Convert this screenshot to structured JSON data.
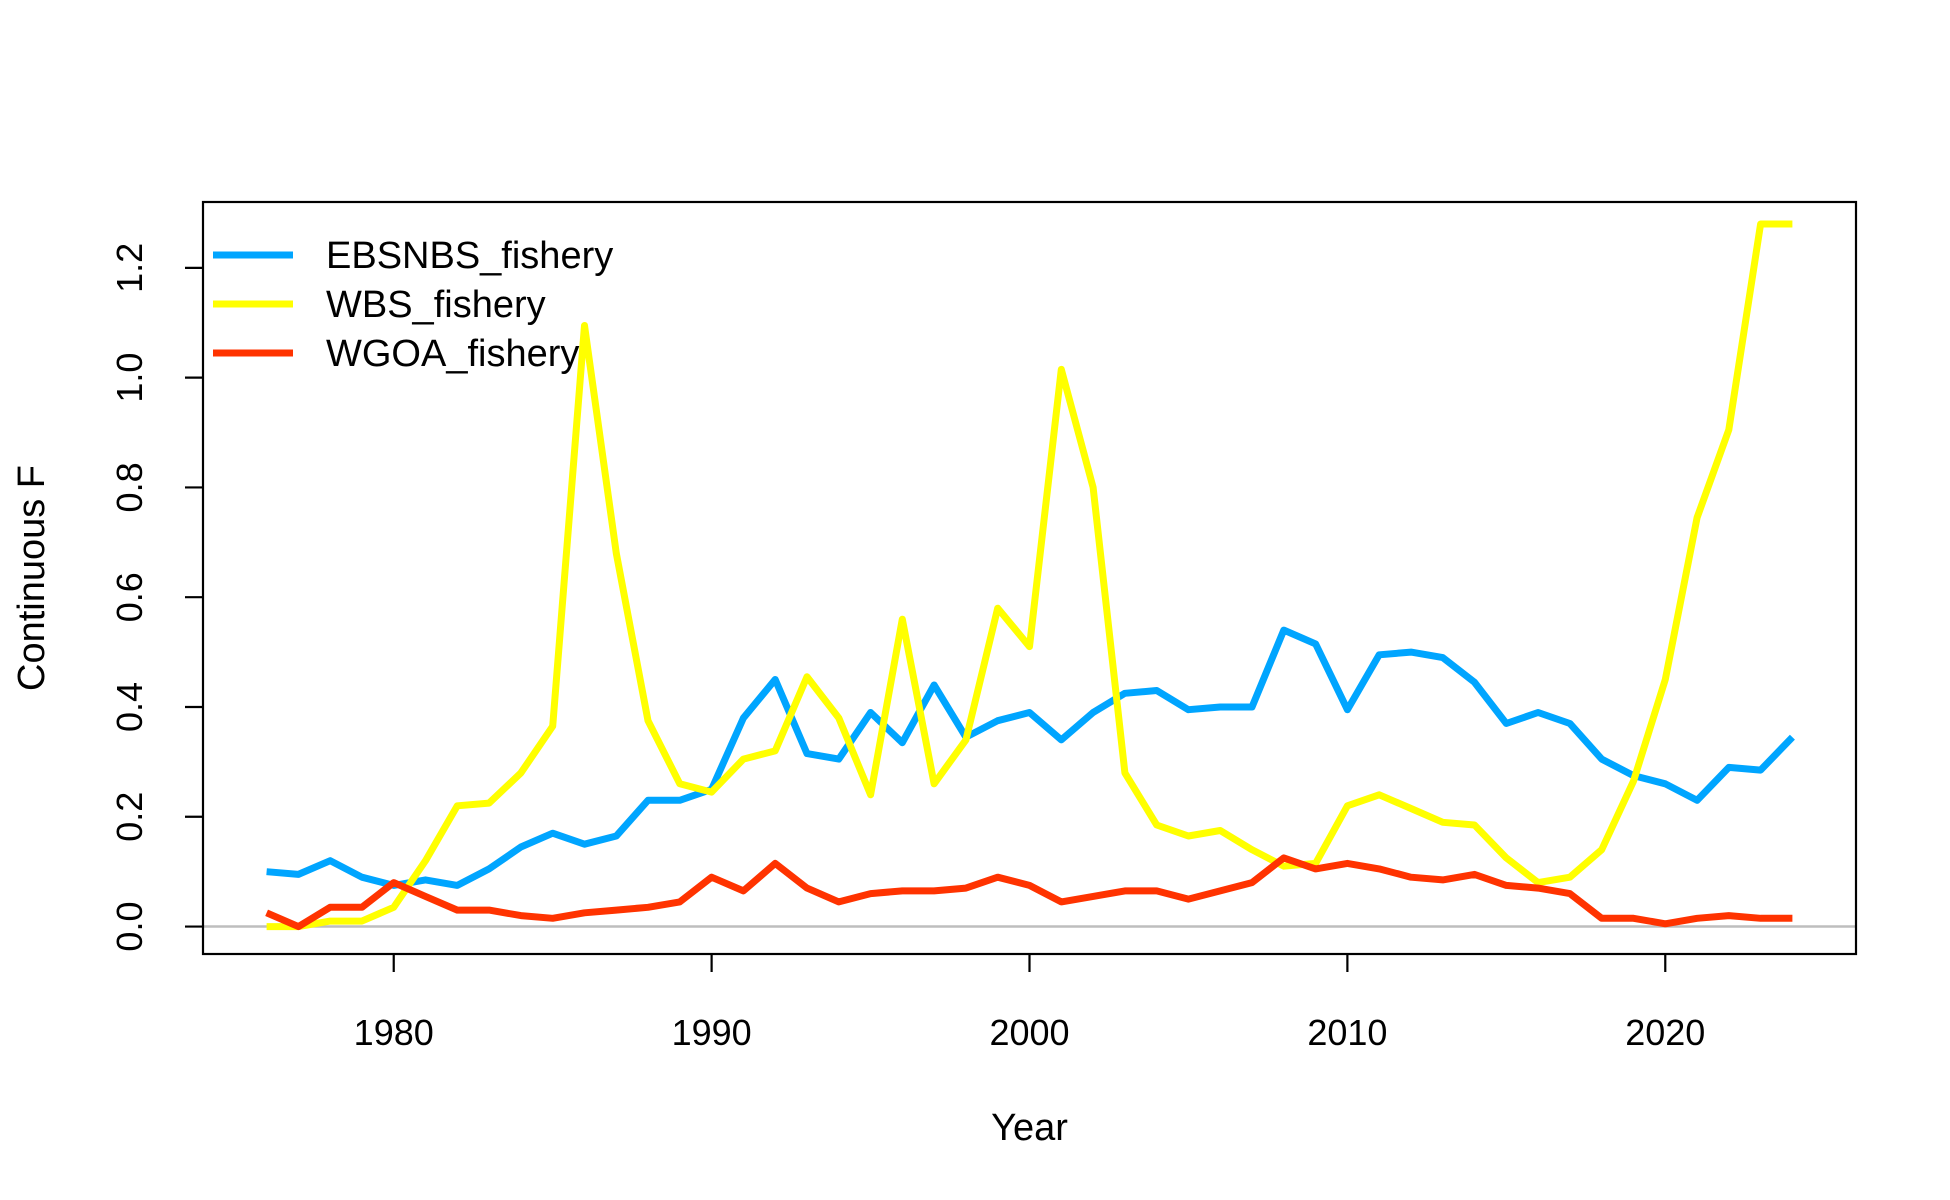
{
  "chart_data": {
    "type": "line",
    "title": "",
    "xlabel": "Year",
    "ylabel": "Continuous F",
    "xlim": [
      1974,
      2026
    ],
    "ylim": [
      -0.05,
      1.32
    ],
    "xticks": [
      1980,
      1990,
      2000,
      2010,
      2020
    ],
    "xtick_labels": [
      "1980",
      "1990",
      "2000",
      "2010",
      "2020"
    ],
    "yticks": [
      0.0,
      0.2,
      0.4,
      0.6,
      0.8,
      1.0,
      1.2
    ],
    "ytick_labels": [
      "0.0",
      "0.2",
      "0.4",
      "0.6",
      "0.8",
      "1.0",
      "1.2"
    ],
    "reference_line": {
      "y": 0,
      "color": "#bebebe"
    },
    "legend_position": "top-left",
    "grid": false,
    "x": [
      1976,
      1977,
      1978,
      1979,
      1980,
      1981,
      1982,
      1983,
      1984,
      1985,
      1986,
      1987,
      1988,
      1989,
      1990,
      1991,
      1992,
      1993,
      1994,
      1995,
      1996,
      1997,
      1998,
      1999,
      2000,
      2001,
      2002,
      2003,
      2004,
      2005,
      2006,
      2007,
      2008,
      2009,
      2010,
      2011,
      2012,
      2013,
      2014,
      2015,
      2016,
      2017,
      2018,
      2019,
      2020,
      2021,
      2022,
      2023,
      2024
    ],
    "series": [
      {
        "name": "EBSNBS_fishery",
        "color": "#00a5ff",
        "values": [
          0.1,
          0.095,
          0.12,
          0.09,
          0.075,
          0.085,
          0.075,
          0.105,
          0.145,
          0.17,
          0.15,
          0.165,
          0.23,
          0.23,
          0.25,
          0.38,
          0.45,
          0.315,
          0.305,
          0.39,
          0.335,
          0.44,
          0.345,
          0.375,
          0.39,
          0.34,
          0.39,
          0.425,
          0.43,
          0.395,
          0.4,
          0.4,
          0.54,
          0.515,
          0.395,
          0.495,
          0.5,
          0.49,
          0.445,
          0.37,
          0.39,
          0.37,
          0.305,
          0.275,
          0.26,
          0.23,
          0.29,
          0.285,
          0.345
        ]
      },
      {
        "name": "WBS_fishery",
        "color": "#ffff00",
        "values": [
          0.0,
          0.0,
          0.01,
          0.01,
          0.035,
          0.12,
          0.22,
          0.225,
          0.28,
          0.365,
          1.095,
          0.68,
          0.375,
          0.26,
          0.245,
          0.305,
          0.32,
          0.455,
          0.38,
          0.24,
          0.56,
          0.26,
          0.34,
          0.58,
          0.51,
          1.015,
          0.8,
          0.28,
          0.185,
          0.165,
          0.175,
          0.14,
          0.11,
          0.115,
          0.22,
          0.24,
          0.215,
          0.19,
          0.185,
          0.125,
          0.08,
          0.09,
          0.14,
          0.265,
          0.45,
          0.745,
          0.905,
          1.28,
          1.28
        ]
      },
      {
        "name": "WGOA_fishery",
        "color": "#ff3300",
        "values": [
          0.025,
          0.0,
          0.035,
          0.035,
          0.08,
          0.055,
          0.03,
          0.03,
          0.02,
          0.015,
          0.025,
          0.03,
          0.035,
          0.045,
          0.09,
          0.065,
          0.115,
          0.07,
          0.045,
          0.06,
          0.065,
          0.065,
          0.07,
          0.09,
          0.075,
          0.045,
          0.055,
          0.065,
          0.065,
          0.05,
          0.065,
          0.08,
          0.125,
          0.105,
          0.115,
          0.105,
          0.09,
          0.085,
          0.095,
          0.075,
          0.07,
          0.06,
          0.015,
          0.015,
          0.005,
          0.015,
          0.02,
          0.015,
          0.015
        ]
      }
    ]
  }
}
